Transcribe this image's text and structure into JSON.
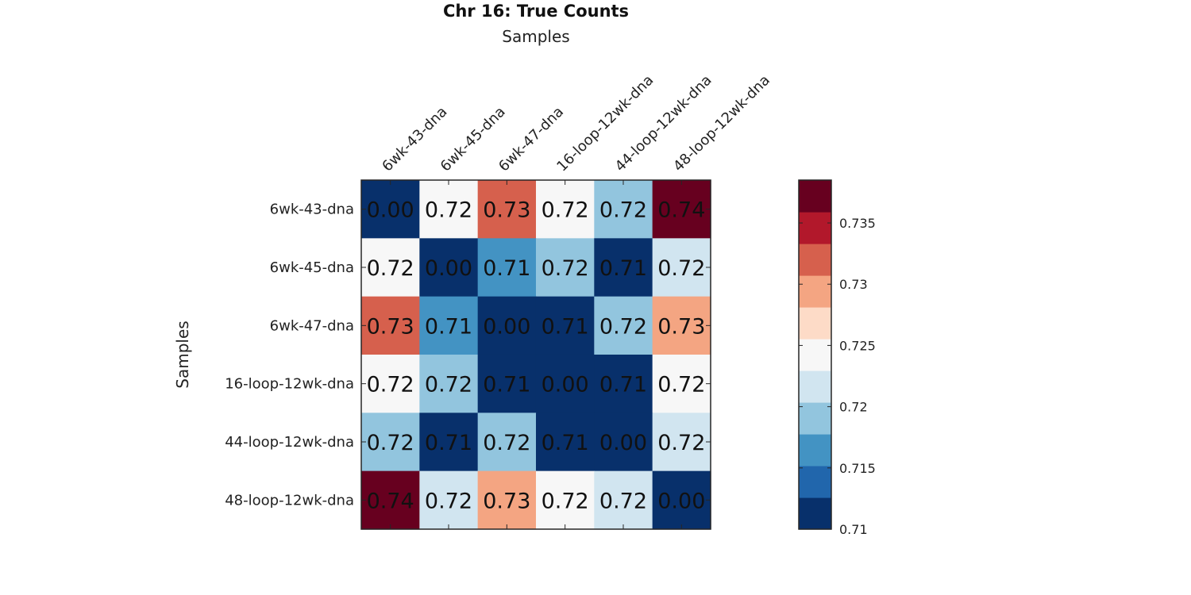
{
  "chart_data": {
    "type": "heatmap",
    "title": "Chr 16: True Counts",
    "xlabel": "Samples",
    "ylabel": "Samples",
    "x_labels": [
      "6wk-43-dna",
      "6wk-45-dna",
      "6wk-47-dna",
      "16-loop-12wk-dna",
      "44-loop-12wk-dna",
      "48-loop-12wk-dna"
    ],
    "y_labels": [
      "6wk-43-dna",
      "6wk-45-dna",
      "6wk-47-dna",
      "16-loop-12wk-dna",
      "44-loop-12wk-dna",
      "48-loop-12wk-dna"
    ],
    "x_axis_position": "top",
    "values": [
      [
        0.0,
        0.72,
        0.73,
        0.72,
        0.72,
        0.74
      ],
      [
        0.72,
        0.0,
        0.71,
        0.72,
        0.71,
        0.72
      ],
      [
        0.73,
        0.71,
        0.0,
        0.71,
        0.72,
        0.73
      ],
      [
        0.72,
        0.72,
        0.71,
        0.0,
        0.71,
        0.72
      ],
      [
        0.72,
        0.71,
        0.72,
        0.71,
        0.0,
        0.72
      ],
      [
        0.74,
        0.72,
        0.73,
        0.72,
        0.72,
        0.0
      ]
    ],
    "cell_labels": [
      [
        "0.00",
        "0.72",
        "0.73",
        "0.72",
        "0.72",
        "0.74"
      ],
      [
        "0.72",
        "0.00",
        "0.71",
        "0.72",
        "0.71",
        "0.72"
      ],
      [
        "0.73",
        "0.71",
        "0.00",
        "0.71",
        "0.72",
        "0.73"
      ],
      [
        "0.72",
        "0.72",
        "0.71",
        "0.00",
        "0.71",
        "0.72"
      ],
      [
        "0.72",
        "0.71",
        "0.72",
        "0.71",
        "0.00",
        "0.72"
      ],
      [
        "0.74",
        "0.72",
        "0.73",
        "0.72",
        "0.72",
        "0.00"
      ]
    ],
    "cell_color_index": [
      [
        0,
        5,
        8,
        5,
        3,
        10
      ],
      [
        5,
        0,
        2,
        3,
        0,
        4
      ],
      [
        8,
        2,
        0,
        0,
        3,
        7
      ],
      [
        5,
        3,
        0,
        0,
        0,
        5
      ],
      [
        3,
        0,
        3,
        0,
        0,
        4
      ],
      [
        10,
        4,
        7,
        5,
        4,
        0
      ]
    ],
    "colorbar": {
      "range": [
        0.71,
        0.7385
      ],
      "colors": [
        "#08306b",
        "#2166ac",
        "#4393c3",
        "#92c5de",
        "#d1e5f0",
        "#f7f7f7",
        "#fddbc7",
        "#f4a582",
        "#d6604d",
        "#b2182b",
        "#67001f"
      ],
      "ticks": [
        0.71,
        0.715,
        0.72,
        0.725,
        0.73,
        0.735
      ],
      "tick_labels": [
        "0.71",
        "0.715",
        "0.72",
        "0.725",
        "0.73",
        "0.735"
      ],
      "position": "right"
    },
    "grid": false
  }
}
